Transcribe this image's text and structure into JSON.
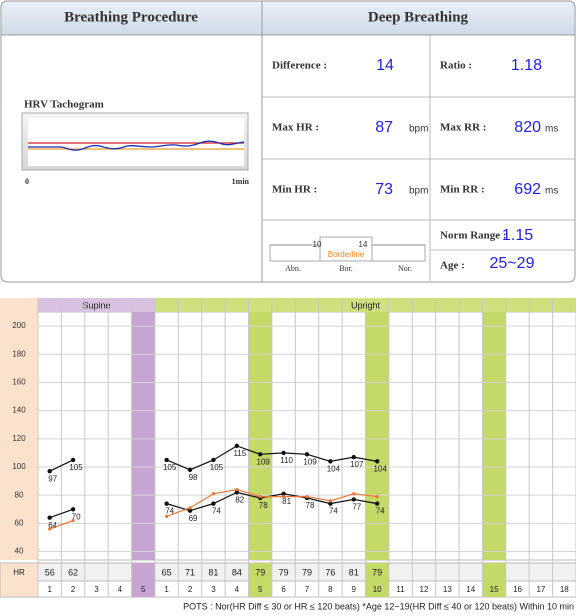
{
  "breathing": {
    "title": "Breathing Procedure",
    "tachogram_label": "HRV Tachogram",
    "axis_start": "0",
    "axis_end": "1min"
  },
  "deep": {
    "title": "Deep Breathing",
    "difference": {
      "label": "Difference :",
      "value": 14
    },
    "ratio": {
      "label": "Ratio :",
      "value": 1.18
    },
    "max_hr": {
      "label": "Max HR :",
      "value": 87,
      "unit": "bpm"
    },
    "max_rr": {
      "label": "Max RR :",
      "value": 820,
      "unit": "ms"
    },
    "min_hr": {
      "label": "Min HR :",
      "value": 73,
      "unit": "bpm"
    },
    "min_rr": {
      "label": "Min RR :",
      "value": 692,
      "unit": "ms"
    },
    "scale": {
      "low": 10,
      "high": 14,
      "band": "Borderline",
      "zones": [
        "Abn.",
        "Bor.",
        "Nor."
      ]
    },
    "norm_range": {
      "label": "Norm Range :",
      "value": 1.15
    },
    "age": {
      "label": "Age :",
      "value": "25~29"
    }
  },
  "chart_data": {
    "type": "line",
    "phases": [
      {
        "name": "Supine",
        "color": "#d9c2e1",
        "highlight": "#c7a5d3"
      },
      {
        "name": "Upright",
        "color": "#cfe07e",
        "highlight": "#c3d968"
      }
    ],
    "categories": [
      "1",
      "2",
      "3",
      "4",
      "5",
      "1",
      "2",
      "3",
      "4",
      "5",
      "6",
      "7",
      "8",
      "9",
      "10",
      "11",
      "12",
      "13",
      "14",
      "15",
      "16",
      "17",
      "18"
    ],
    "ylim": [
      34,
      210
    ],
    "yticks": [
      40,
      60,
      80,
      100,
      120,
      140,
      160,
      180,
      200
    ],
    "grid": true,
    "series": [
      {
        "color": "#111111",
        "values": [
          97,
          105,
          null,
          null,
          null,
          105,
          98,
          105,
          115,
          109,
          110,
          109,
          104,
          107,
          104,
          null,
          null,
          null,
          null,
          null,
          null,
          null,
          null
        ]
      },
      {
        "color": "#111111",
        "values": [
          64,
          70,
          null,
          null,
          null,
          74,
          69,
          74,
          82,
          78,
          81,
          78,
          74,
          77,
          74,
          null,
          null,
          null,
          null,
          null,
          null,
          null,
          null
        ]
      },
      {
        "color": "#e8753a",
        "values": [
          56,
          62,
          null,
          null,
          null,
          65,
          71,
          81,
          84,
          79,
          79,
          79,
          76,
          81,
          79,
          null,
          null,
          null,
          null,
          null,
          null,
          null,
          null
        ]
      }
    ],
    "hr_row": {
      "label": "HR",
      "values": [
        56,
        62,
        null,
        null,
        null,
        65,
        71,
        81,
        84,
        79,
        79,
        79,
        76,
        81,
        79,
        null,
        null,
        null,
        null,
        null,
        null,
        null,
        null
      ]
    },
    "footnote": "POTS : Nor(HR Diff ≤ 30 or HR ≤ 120 beats) *Age 12~19(HR Diff ≤ 40 or 120 beats) Within 10 min"
  }
}
